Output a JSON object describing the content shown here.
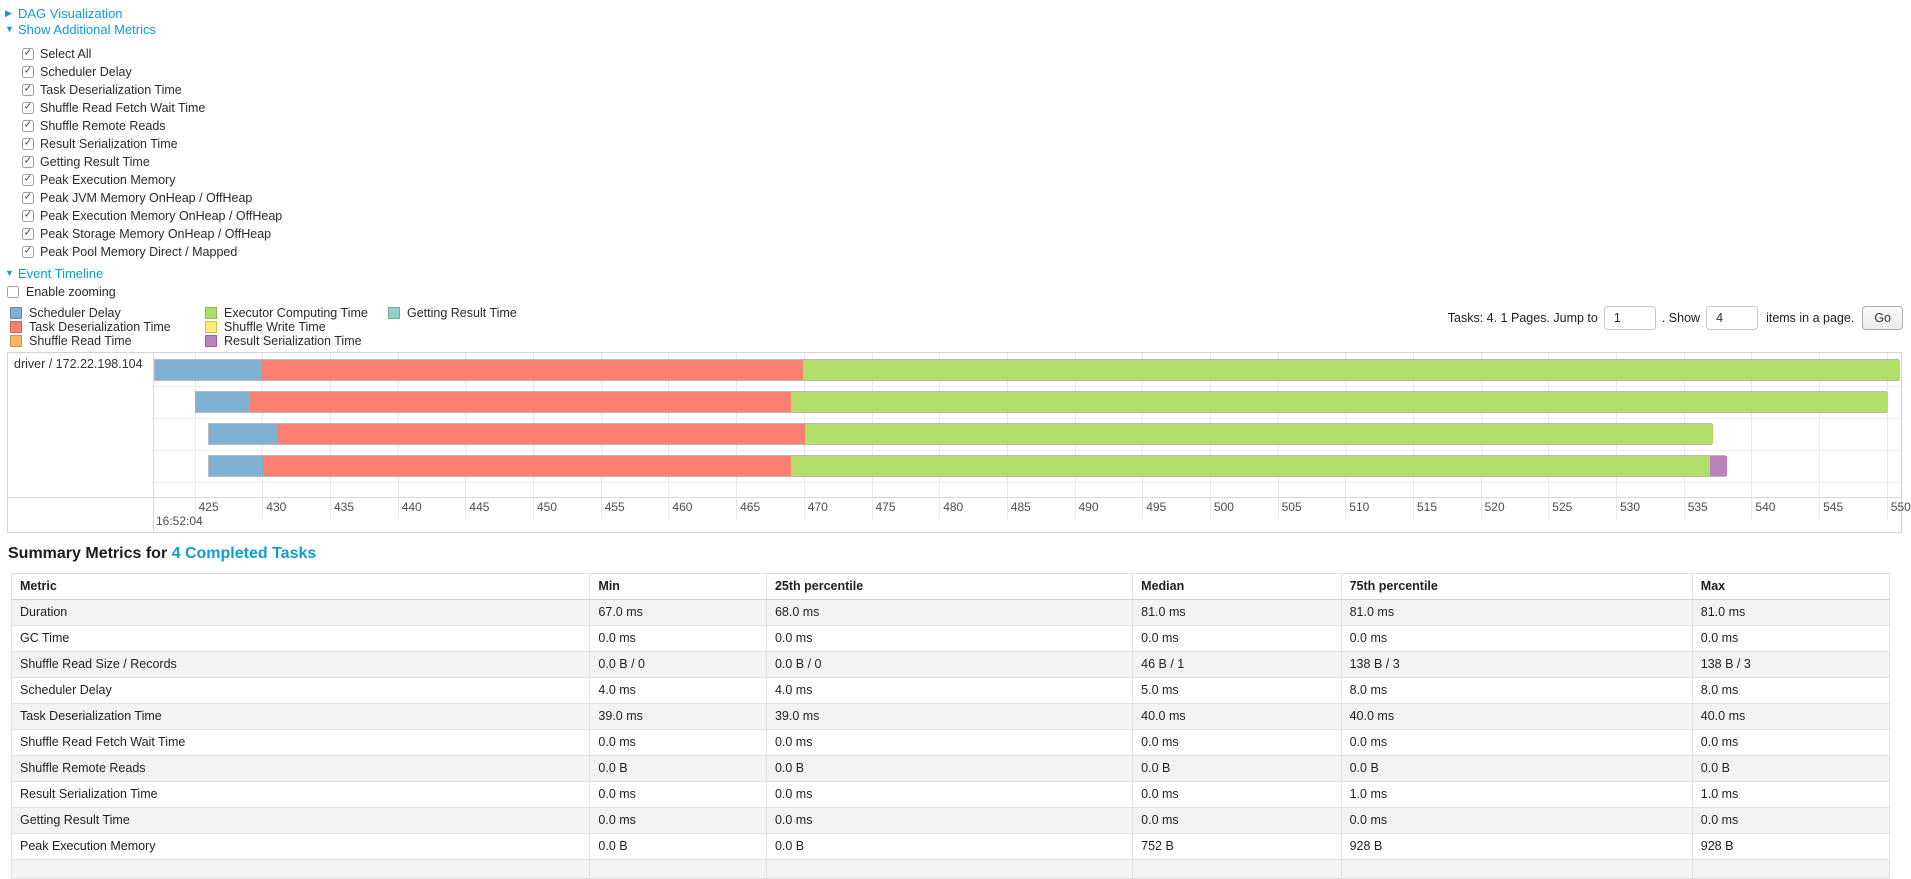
{
  "toggles": {
    "dag": "DAG Visualization",
    "metrics": "Show Additional Metrics",
    "timeline": "Event Timeline"
  },
  "metrics_options": [
    {
      "label": "Select All",
      "checked": true
    },
    {
      "label": "Scheduler Delay",
      "checked": true
    },
    {
      "label": "Task Deserialization Time",
      "checked": true
    },
    {
      "label": "Shuffle Read Fetch Wait Time",
      "checked": true
    },
    {
      "label": "Shuffle Remote Reads",
      "checked": true
    },
    {
      "label": "Result Serialization Time",
      "checked": true
    },
    {
      "label": "Getting Result Time",
      "checked": true
    },
    {
      "label": "Peak Execution Memory",
      "checked": true
    },
    {
      "label": "Peak JVM Memory OnHeap / OffHeap",
      "checked": true
    },
    {
      "label": "Peak Execution Memory OnHeap / OffHeap",
      "checked": true
    },
    {
      "label": "Peak Storage Memory OnHeap / OffHeap",
      "checked": true
    },
    {
      "label": "Peak Pool Memory Direct / Mapped",
      "checked": true
    }
  ],
  "enable_zooming": {
    "label": "Enable zooming",
    "checked": false
  },
  "colors": {
    "scheduler_delay": "#80B1D3",
    "task_deserialization": "#FB8072",
    "shuffle_read": "#FDB462",
    "executor_computing": "#B3DE69",
    "shuffle_write": "#FFED6F",
    "result_serialization": "#BC80BD",
    "getting_result": "#8DD3C7"
  },
  "legend": {
    "columns": [
      [
        {
          "label": "Scheduler Delay",
          "metric": "scheduler_delay"
        },
        {
          "label": "Task Deserialization Time",
          "metric": "task_deserialization"
        },
        {
          "label": "Shuffle Read Time",
          "metric": "shuffle_read"
        }
      ],
      [
        {
          "label": "Executor Computing Time",
          "metric": "executor_computing"
        },
        {
          "label": "Shuffle Write Time",
          "metric": "shuffle_write"
        },
        {
          "label": "Result Serialization Time",
          "metric": "result_serialization"
        }
      ],
      [
        {
          "label": "Getting Result Time",
          "metric": "getting_result"
        }
      ]
    ]
  },
  "pagination": {
    "tasks_text": "Tasks: 4. 1 Pages. Jump to",
    "jump_value": "1",
    "show_text": ". Show",
    "show_value": "4",
    "items_text": "items in a page.",
    "go_label": "Go"
  },
  "chart_data": {
    "type": "timeline",
    "group_label": "driver / 172.22.198.104",
    "x_axis": {
      "start_ms": 422.0,
      "end_ms": 551.2,
      "tick_start": 425,
      "tick_end": 550,
      "tick_step": 5,
      "base_time_label": "16:52:04"
    },
    "tasks": [
      {
        "segments": [
          {
            "metric": "scheduler_delay",
            "start": 422.0,
            "end": 429.9
          },
          {
            "metric": "task_deserialization",
            "start": 429.9,
            "end": 469.9
          },
          {
            "metric": "executor_computing",
            "start": 469.9,
            "end": 550.9
          }
        ]
      },
      {
        "segments": [
          {
            "metric": "scheduler_delay",
            "start": 425.0,
            "end": 429.0
          },
          {
            "metric": "task_deserialization",
            "start": 429.0,
            "end": 469.0
          },
          {
            "metric": "executor_computing",
            "start": 469.0,
            "end": 550.0
          }
        ]
      },
      {
        "segments": [
          {
            "metric": "scheduler_delay",
            "start": 426.0,
            "end": 431.0
          },
          {
            "metric": "task_deserialization",
            "start": 431.0,
            "end": 470.0
          },
          {
            "metric": "executor_computing",
            "start": 470.0,
            "end": 537.1
          }
        ]
      },
      {
        "segments": [
          {
            "metric": "scheduler_delay",
            "start": 426.0,
            "end": 430.0
          },
          {
            "metric": "task_deserialization",
            "start": 430.0,
            "end": 469.0
          },
          {
            "metric": "executor_computing",
            "start": 469.0,
            "end": 536.9
          },
          {
            "metric": "result_serialization",
            "start": 536.9,
            "end": 538.1
          }
        ]
      }
    ]
  },
  "summary": {
    "title_prefix": "Summary Metrics for",
    "title_link": "4 Completed Tasks",
    "table": {
      "headers": [
        "Metric",
        "Min",
        "25th percentile",
        "Median",
        "75th percentile",
        "Max"
      ],
      "rows": [
        [
          "Duration",
          "67.0 ms",
          "68.0 ms",
          "81.0 ms",
          "81.0 ms",
          "81.0 ms"
        ],
        [
          "GC Time",
          "0.0 ms",
          "0.0 ms",
          "0.0 ms",
          "0.0 ms",
          "0.0 ms"
        ],
        [
          "Shuffle Read Size / Records",
          "0.0 B / 0",
          "0.0 B / 0",
          "46 B / 1",
          "138 B / 3",
          "138 B / 3"
        ],
        [
          "Scheduler Delay",
          "4.0 ms",
          "4.0 ms",
          "5.0 ms",
          "8.0 ms",
          "8.0 ms"
        ],
        [
          "Task Deserialization Time",
          "39.0 ms",
          "39.0 ms",
          "40.0 ms",
          "40.0 ms",
          "40.0 ms"
        ],
        [
          "Shuffle Read Fetch Wait Time",
          "0.0 ms",
          "0.0 ms",
          "0.0 ms",
          "0.0 ms",
          "0.0 ms"
        ],
        [
          "Shuffle Remote Reads",
          "0.0 B",
          "0.0 B",
          "0.0 B",
          "0.0 B",
          "0.0 B"
        ],
        [
          "Result Serialization Time",
          "0.0 ms",
          "0.0 ms",
          "0.0 ms",
          "1.0 ms",
          "1.0 ms"
        ],
        [
          "Getting Result Time",
          "0.0 ms",
          "0.0 ms",
          "0.0 ms",
          "0.0 ms",
          "0.0 ms"
        ],
        [
          "Peak Execution Memory",
          "0.0 B",
          "0.0 B",
          "752 B",
          "928 B",
          "928 B"
        ]
      ]
    }
  }
}
